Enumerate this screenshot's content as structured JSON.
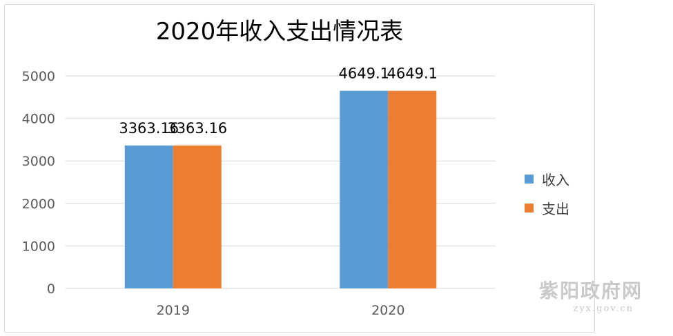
{
  "chart_data": {
    "type": "bar",
    "title": "2020年收入支出情况表",
    "categories": [
      "2019",
      "2020"
    ],
    "series": [
      {
        "name": "收入",
        "values": [
          3363.16,
          4649.1
        ],
        "color": "#5b9bd5"
      },
      {
        "name": "支出",
        "values": [
          3363.16,
          4649.1
        ],
        "color": "#ed7d31"
      }
    ],
    "ylim": [
      0,
      5000
    ],
    "yticks": [
      0,
      1000,
      2000,
      3000,
      4000,
      5000
    ],
    "grid": true,
    "legend": "right",
    "data_labels": true
  },
  "watermark": {
    "title": "紫阳政府网",
    "url": "zyx.gov.cn"
  }
}
